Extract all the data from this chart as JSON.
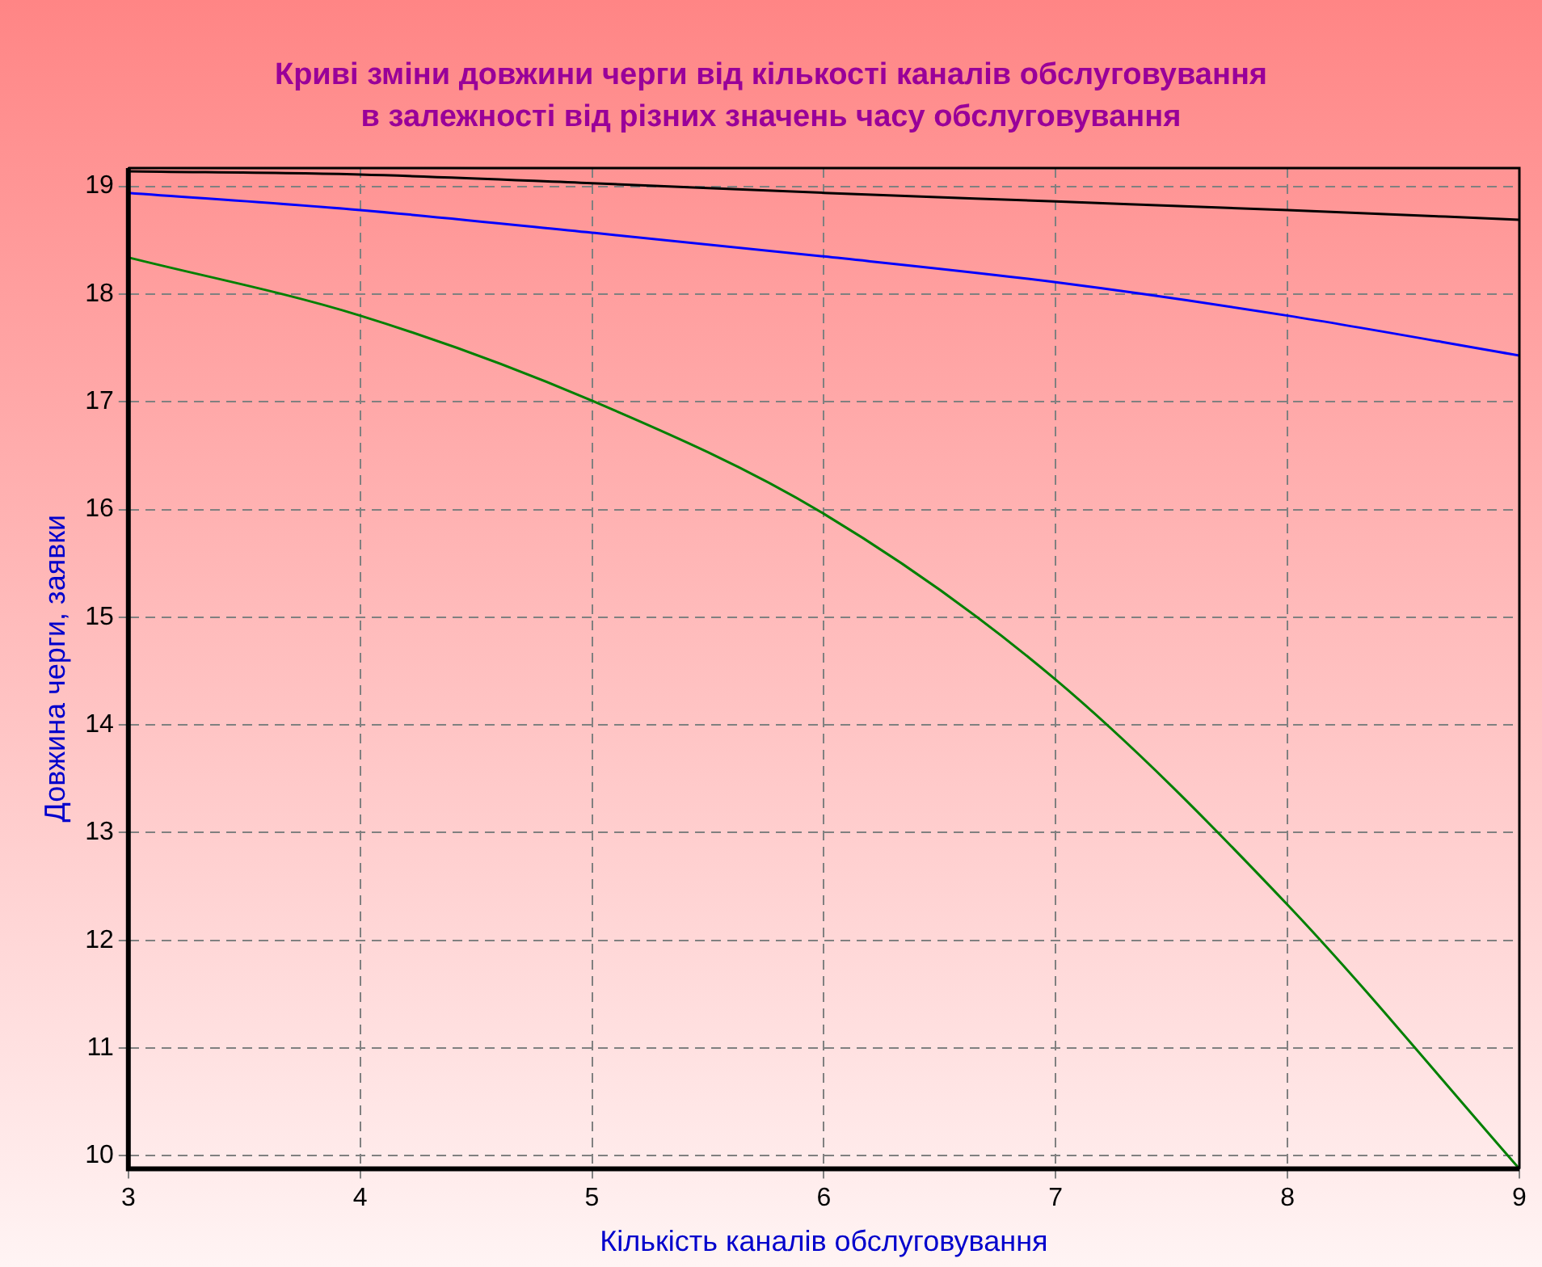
{
  "chart_data": {
    "type": "line",
    "title": "Криві зміни довжини черги від кількості каналів обслуговування\nв залежності  від різних значень часу обслуговування",
    "xlabel": "Кількість каналів обслуговування",
    "ylabel": "Довжина черги, заявки",
    "x": [
      3,
      4,
      5,
      6,
      7,
      8,
      9
    ],
    "series": [
      {
        "color": "#000000",
        "values": [
          19.14,
          19.11,
          19.03,
          18.94,
          18.86,
          18.78,
          18.69
        ]
      },
      {
        "color": "#0000ff",
        "values": [
          18.94,
          18.78,
          18.57,
          18.35,
          18.11,
          17.8,
          17.43
        ]
      },
      {
        "color": "#008000",
        "values": [
          18.34,
          17.8,
          17.01,
          15.96,
          14.42,
          12.33,
          9.88
        ]
      }
    ],
    "xlim": [
      3,
      9
    ],
    "xticks": [
      3,
      4,
      5,
      6,
      7,
      8,
      9
    ],
    "ylim": [
      9.88,
      19.17
    ],
    "yticks": [
      10,
      11,
      12,
      13,
      14,
      15,
      16,
      17,
      18,
      19
    ],
    "grid": true,
    "line_style": "solid",
    "marker": "none",
    "legend": false
  }
}
